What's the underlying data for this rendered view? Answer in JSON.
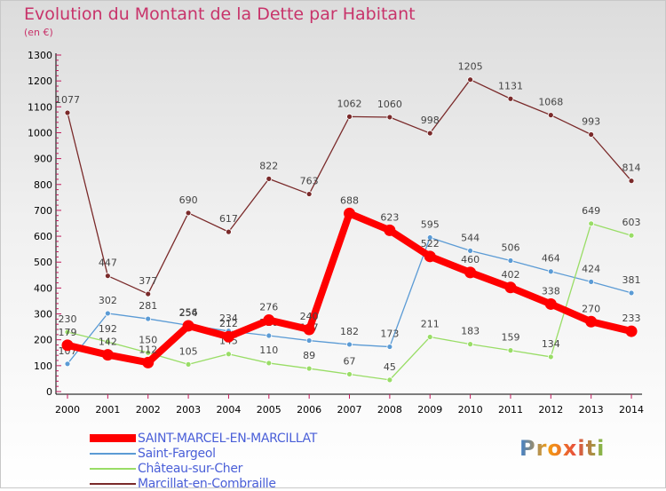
{
  "logo": {
    "text": "Proxiti"
  },
  "chart_data": {
    "type": "line",
    "title": "Evolution du Montant de la Dette par Habitant",
    "xlabel": "",
    "ylabel": "(en €)",
    "ylim": [
      0,
      1300
    ],
    "yticks": [
      0,
      100,
      200,
      300,
      400,
      500,
      600,
      700,
      800,
      900,
      1000,
      1100,
      1200,
      1300
    ],
    "x": [
      "2000",
      "2001",
      "2002",
      "2003",
      "2004",
      "2005",
      "2006",
      "2007",
      "2008",
      "2009",
      "2010",
      "2011",
      "2012",
      "2013",
      "2014"
    ],
    "grid": false,
    "legend_position": "bottom-left",
    "series": [
      {
        "name": "SAINT-MARCEL-EN-MARCILLAT",
        "color": "#ff0000",
        "emphasis": true,
        "values": [
          179,
          142,
          112,
          254,
          212,
          276,
          240,
          688,
          623,
          522,
          460,
          402,
          338,
          270,
          233
        ]
      },
      {
        "name": "Saint-Fargeol",
        "color": "#5b9bd5",
        "values": [
          107,
          302,
          281,
          256,
          234,
          216,
          197,
          182,
          173,
          595,
          544,
          506,
          464,
          424,
          381
        ]
      },
      {
        "name": "Château-sur-Cher",
        "color": "#99dd66",
        "values": [
          230,
          192,
          150,
          105,
          145,
          110,
          89,
          67,
          45,
          211,
          183,
          159,
          134,
          649,
          603
        ]
      },
      {
        "name": "Marcillat-en-Combraille",
        "color": "#7a2a2a",
        "values": [
          1077,
          447,
          377,
          690,
          617,
          822,
          763,
          1062,
          1060,
          998,
          1205,
          1131,
          1068,
          993,
          814
        ]
      }
    ]
  }
}
